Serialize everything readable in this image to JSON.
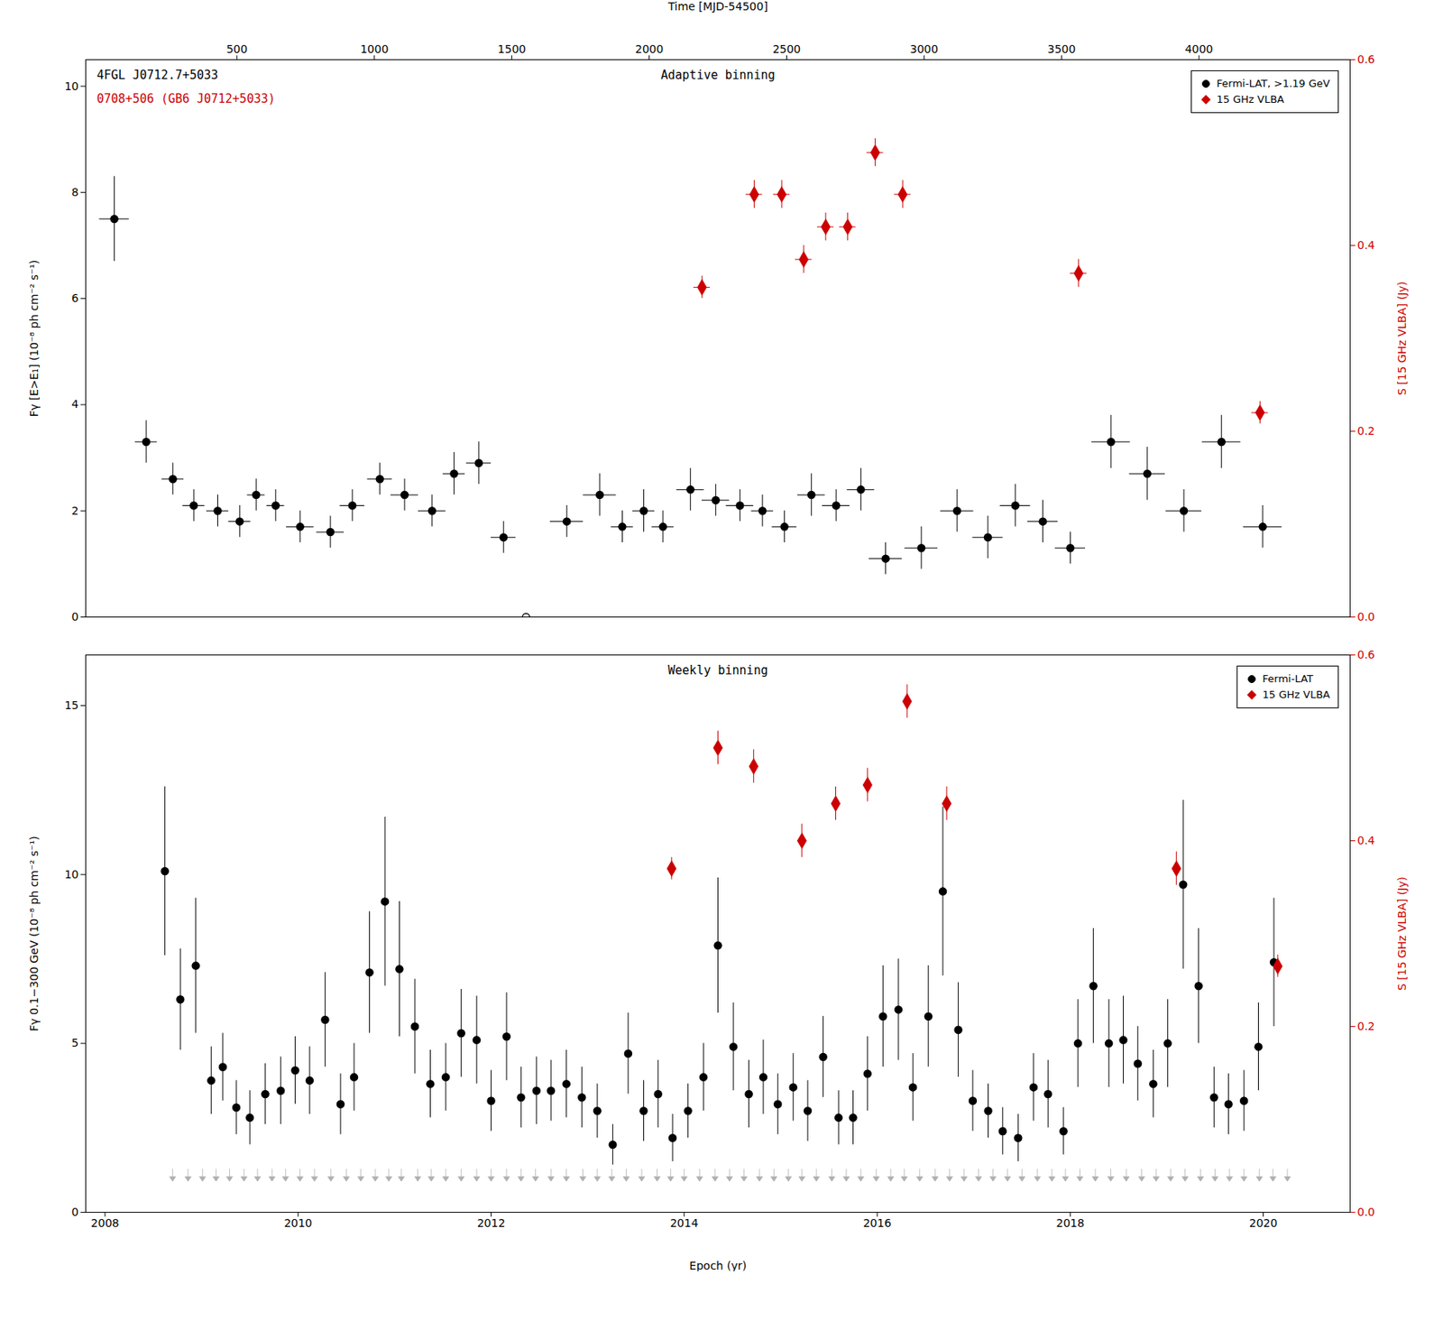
{
  "chart_data": [
    {
      "type": "scatter",
      "xlabel": "Time [MJD-54500]",
      "xlim": [
        -50,
        4550
      ],
      "xticks": [
        500,
        1000,
        1500,
        2000,
        2500,
        3000,
        3500,
        4000
      ],
      "ylabel": "Fγ [E>E₁] (10⁻⁸ ph cm⁻² s⁻¹)",
      "ylim": [
        0,
        10.5
      ],
      "yticks": [
        0,
        2,
        4,
        6,
        8,
        10
      ],
      "y2label": "S [15 GHz VLBA] (Jy)",
      "y2lim": [
        0,
        0.6
      ],
      "y2ticks": [
        {
          "value": 0,
          "label": "0.0"
        },
        0.2,
        0.4,
        0.6
      ],
      "grid": false,
      "legend": "upper right",
      "annotations": [
        {
          "text": "4FGL J0712.7+5033",
          "color": "#000000"
        },
        {
          "text": "0708+506 (GB6 J0712+5033)",
          "color": "#cc0000"
        },
        {
          "text": "Adaptive binning",
          "color": "#000000"
        }
      ],
      "series": [
        {
          "name": "Fermi-LAT, >1.19 GeV",
          "color": "#000000",
          "marker": "circle",
          "x": [
            54,
            170,
            267,
            343,
            430,
            510,
            570,
            641,
            730,
            840,
            920,
            1020,
            1110,
            1210,
            1290,
            1380,
            1470,
            1700,
            1820,
            1902,
            1980,
            2050,
            2150,
            2242,
            2330,
            2412,
            2492,
            2590,
            2680,
            2770,
            2860,
            2990,
            3120,
            3232,
            3332,
            3432,
            3532,
            3680,
            3812,
            3945,
            4082,
            4232
          ],
          "values": [
            7.5,
            3.3,
            2.6,
            2.1,
            2.0,
            1.8,
            2.3,
            2.1,
            1.7,
            1.6,
            2.1,
            2.6,
            2.3,
            2.0,
            2.7,
            2.9,
            1.5,
            1.8,
            2.3,
            1.7,
            2.0,
            1.7,
            2.4,
            2.2,
            2.1,
            2.0,
            1.7,
            2.3,
            2.1,
            2.4,
            1.1,
            1.3,
            2.0,
            1.5,
            2.1,
            1.8,
            1.3,
            3.3,
            2.7,
            2.0,
            3.3,
            1.7
          ],
          "xerr_low": [
            54,
            40,
            40,
            40,
            40,
            40,
            32,
            32,
            50,
            50,
            45,
            45,
            50,
            50,
            40,
            45,
            45,
            60,
            60,
            40,
            40,
            40,
            50,
            50,
            50,
            40,
            45,
            50,
            50,
            50,
            60,
            60,
            60,
            55,
            55,
            55,
            55,
            70,
            65,
            65,
            70,
            70
          ],
          "xerr_high": [
            54,
            40,
            40,
            40,
            40,
            40,
            32,
            32,
            50,
            50,
            45,
            45,
            50,
            50,
            40,
            45,
            45,
            60,
            60,
            40,
            40,
            40,
            50,
            50,
            50,
            40,
            45,
            50,
            50,
            50,
            60,
            60,
            60,
            55,
            55,
            55,
            55,
            70,
            65,
            65,
            70,
            70
          ],
          "yerr": [
            0.8,
            0.4,
            0.3,
            0.3,
            0.3,
            0.3,
            0.3,
            0.3,
            0.3,
            0.3,
            0.3,
            0.3,
            0.3,
            0.3,
            0.4,
            0.4,
            0.3,
            0.3,
            0.4,
            0.3,
            0.4,
            0.3,
            0.4,
            0.3,
            0.3,
            0.3,
            0.3,
            0.4,
            0.3,
            0.4,
            0.3,
            0.4,
            0.4,
            0.4,
            0.4,
            0.4,
            0.3,
            0.5,
            0.5,
            0.4,
            0.5,
            0.4
          ]
        },
        {
          "color": "#000000",
          "marker": "circle-open",
          "x": [
            1552
          ],
          "values": [
            0.0
          ],
          "xerr": [
            60
          ]
        },
        {
          "name": "15 GHz VLBA",
          "color": "#cc0000",
          "marker": "diamond",
          "axis": "y2",
          "x": [
            2192,
            2382,
            2482,
            2562,
            2642,
            2722,
            2822,
            2922,
            3562,
            4222
          ],
          "values": [
            0.355,
            0.455,
            0.455,
            0.385,
            0.42,
            0.42,
            0.5,
            0.455,
            0.37,
            0.22
          ],
          "yerr": [
            0.012,
            0.015,
            0.015,
            0.015,
            0.015,
            0.015,
            0.015,
            0.015,
            0.015,
            0.012
          ],
          "xerr": [
            30,
            30,
            30,
            30,
            30,
            30,
            30,
            30,
            30,
            30
          ]
        }
      ]
    },
    {
      "type": "scatter",
      "xlabel": "Epoch (yr)",
      "xlim": [
        2007.8,
        2020.9
      ],
      "xticks": [
        2008,
        2010,
        2012,
        2014,
        2016,
        2018,
        2020
      ],
      "ylabel": "Fγ 0.1−300 GeV (10⁻⁸ ph cm⁻² s⁻¹)",
      "ylim": [
        0,
        16.5
      ],
      "yticks": [
        0,
        5,
        10,
        15
      ],
      "y2label": "S [15 GHz VLBA] (Jy)",
      "y2lim": [
        0,
        0.6
      ],
      "y2ticks": [
        {
          "value": 0,
          "label": "0.0"
        },
        0.2,
        0.4,
        0.6
      ],
      "grid": false,
      "legend": "upper right",
      "annotations": [
        {
          "text": "Weekly binning",
          "color": "#000000"
        }
      ],
      "series": [
        {
          "name": "Fermi-LAT",
          "color": "#000000",
          "marker": "circle",
          "x": [
            2008.62,
            2008.78,
            2008.94,
            2009.1,
            2009.22,
            2009.36,
            2009.5,
            2009.66,
            2009.82,
            2009.97,
            2010.12,
            2010.28,
            2010.44,
            2010.58,
            2010.74,
            2010.9,
            2011.05,
            2011.21,
            2011.37,
            2011.53,
            2011.69,
            2011.85,
            2012.0,
            2012.16,
            2012.31,
            2012.47,
            2012.62,
            2012.78,
            2012.94,
            2013.1,
            2013.26,
            2013.42,
            2013.58,
            2013.73,
            2013.88,
            2014.04,
            2014.2,
            2014.35,
            2014.51,
            2014.67,
            2014.82,
            2014.97,
            2015.13,
            2015.28,
            2015.44,
            2015.6,
            2015.75,
            2015.9,
            2016.06,
            2016.22,
            2016.37,
            2016.53,
            2016.68,
            2016.84,
            2016.99,
            2017.15,
            2017.3,
            2017.46,
            2017.62,
            2017.77,
            2017.93,
            2018.08,
            2018.24,
            2018.4,
            2018.55,
            2018.7,
            2018.86,
            2019.01,
            2019.17,
            2019.33,
            2019.49,
            2019.64,
            2019.8,
            2019.95,
            2020.11
          ],
          "values": [
            10.1,
            6.3,
            7.3,
            3.9,
            4.3,
            3.1,
            2.8,
            3.5,
            3.6,
            4.2,
            3.9,
            5.7,
            3.2,
            4.0,
            7.1,
            9.2,
            7.2,
            5.5,
            3.8,
            4.0,
            5.3,
            5.1,
            3.3,
            5.2,
            3.4,
            3.6,
            3.6,
            3.8,
            3.4,
            3.0,
            2.0,
            4.7,
            3.0,
            3.5,
            2.2,
            3.0,
            4.0,
            7.9,
            4.9,
            3.5,
            4.0,
            3.2,
            3.7,
            3.0,
            4.6,
            2.8,
            2.8,
            4.1,
            5.8,
            6.0,
            3.7,
            5.8,
            9.5,
            5.4,
            3.3,
            3.0,
            2.4,
            2.2,
            3.7,
            3.5,
            2.4,
            5.0,
            6.7,
            5.0,
            5.1,
            4.4,
            3.8,
            5.0,
            9.7,
            6.7,
            3.4,
            3.2,
            3.3,
            4.9,
            7.4
          ],
          "yerr": [
            2.5,
            1.5,
            2.0,
            1.0,
            1.0,
            0.8,
            0.8,
            0.9,
            1.0,
            1.0,
            1.0,
            1.4,
            0.9,
            1.0,
            1.8,
            2.5,
            2.0,
            1.4,
            1.0,
            1.0,
            1.3,
            1.3,
            0.9,
            1.3,
            0.9,
            1.0,
            0.9,
            1.0,
            0.9,
            0.8,
            0.6,
            1.2,
            0.9,
            1.0,
            0.7,
            0.8,
            1.0,
            2.0,
            1.3,
            1.0,
            1.1,
            0.9,
            1.0,
            0.9,
            1.2,
            0.8,
            0.8,
            1.1,
            1.5,
            1.5,
            1.0,
            1.5,
            2.5,
            1.4,
            0.9,
            0.8,
            0.7,
            0.7,
            1.0,
            1.0,
            0.7,
            1.3,
            1.7,
            1.3,
            1.3,
            1.1,
            1.0,
            1.3,
            2.5,
            1.7,
            0.9,
            0.9,
            0.9,
            1.3,
            1.9
          ]
        },
        {
          "color": "#b0b0b0",
          "marker": "triangle-down",
          "x": [
            2008.7,
            2008.86,
            2009.01,
            2009.15,
            2009.29,
            2009.44,
            2009.58,
            2009.73,
            2009.87,
            2010.02,
            2010.17,
            2010.34,
            2010.5,
            2010.65,
            2010.8,
            2010.94,
            2011.07,
            2011.24,
            2011.38,
            2011.53,
            2011.69,
            2011.85,
            2012.0,
            2012.16,
            2012.31,
            2012.46,
            2012.62,
            2012.78,
            2012.95,
            2013.1,
            2013.25,
            2013.4,
            2013.56,
            2013.72,
            2013.86,
            2014.0,
            2014.16,
            2014.32,
            2014.47,
            2014.62,
            2014.78,
            2014.93,
            2015.08,
            2015.22,
            2015.37,
            2015.53,
            2015.68,
            2015.83,
            2015.99,
            2016.14,
            2016.28,
            2016.44,
            2016.6,
            2016.75,
            2016.9,
            2017.05,
            2017.2,
            2017.35,
            2017.5,
            2017.66,
            2017.81,
            2017.95,
            2018.1,
            2018.26,
            2018.42,
            2018.58,
            2018.74,
            2018.89,
            2019.04,
            2019.19,
            2019.35,
            2019.5,
            2019.65,
            2019.8,
            2019.96,
            2020.1,
            2020.25
          ],
          "values": [
            1.0,
            1.0,
            1.0,
            1.0,
            1.0,
            1.0,
            1.0,
            1.0,
            1.0,
            1.0,
            1.0,
            1.0,
            1.0,
            1.0,
            1.0,
            1.0,
            1.0,
            1.0,
            1.0,
            1.0,
            1.0,
            1.0,
            1.0,
            1.0,
            1.0,
            1.0,
            1.0,
            1.0,
            1.0,
            1.0,
            1.0,
            1.0,
            1.0,
            1.0,
            1.0,
            1.0,
            1.0,
            1.0,
            1.0,
            1.0,
            1.0,
            1.0,
            1.0,
            1.0,
            1.0,
            1.0,
            1.0,
            1.0,
            1.0,
            1.0,
            1.0,
            1.0,
            1.0,
            1.0,
            1.0,
            1.0,
            1.0,
            1.0,
            1.0,
            1.0,
            1.0,
            1.0,
            1.0,
            1.0,
            1.0,
            1.0,
            1.0,
            1.0,
            1.0,
            1.0,
            1.0,
            1.0,
            1.0,
            1.0,
            1.0,
            1.0,
            1.0
          ]
        },
        {
          "name": "15 GHz VLBA",
          "color": "#cc0000",
          "marker": "diamond",
          "axis": "y2",
          "x": [
            2013.87,
            2014.35,
            2014.72,
            2015.22,
            2015.57,
            2015.9,
            2016.31,
            2016.72,
            2019.1,
            2020.15
          ],
          "values": [
            0.37,
            0.5,
            0.48,
            0.4,
            0.44,
            0.46,
            0.55,
            0.44,
            0.37,
            0.265
          ],
          "yerr": [
            0.012,
            0.018,
            0.018,
            0.018,
            0.018,
            0.018,
            0.018,
            0.018,
            0.018,
            0.012
          ]
        }
      ]
    }
  ]
}
